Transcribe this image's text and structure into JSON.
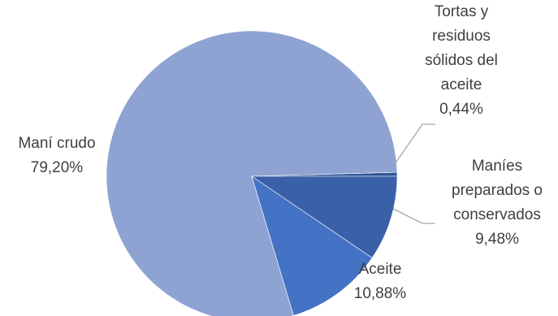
{
  "chart_data": {
    "type": "pie",
    "title": "",
    "legend": "none",
    "start_angle_deg": 0,
    "direction": "counterclockwise",
    "slices": [
      {
        "label_lines": [
          "Tortas y",
          "residuos",
          "sólidos del",
          "aceite"
        ],
        "value": 0.44,
        "value_text": "0,44%",
        "color": "#2f5597"
      },
      {
        "label_lines": [
          "Maní crudo"
        ],
        "value": 79.2,
        "value_text": "79,20%",
        "color": "#8fa3d3"
      },
      {
        "label_lines": [
          "Aceite"
        ],
        "value": 10.88,
        "value_text": "10,88%",
        "color": "#4472c4"
      },
      {
        "label_lines": [
          "Maníes",
          "preparados o",
          "conservados"
        ],
        "value": 9.48,
        "value_text": "9,48%",
        "color": "#3a60a8"
      }
    ]
  }
}
